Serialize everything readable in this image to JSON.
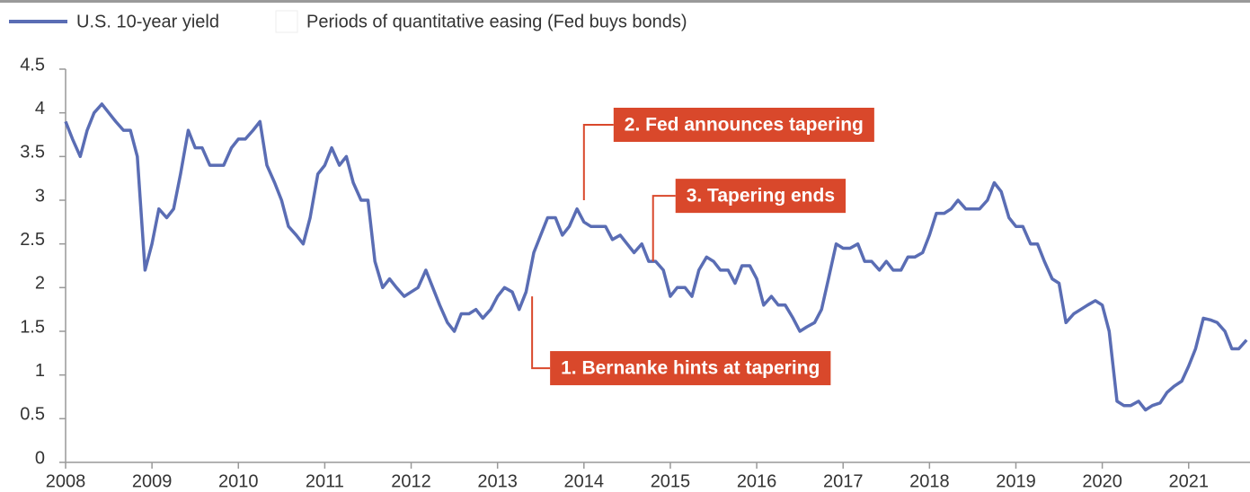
{
  "chart_data": {
    "type": "line",
    "series": [
      {
        "name": "U.S. 10-year yield",
        "color": "#5a6db4",
        "x": [
          2008.0,
          2008.08,
          2008.17,
          2008.25,
          2008.33,
          2008.42,
          2008.5,
          2008.58,
          2008.67,
          2008.75,
          2008.83,
          2008.92,
          2009.0,
          2009.08,
          2009.17,
          2009.25,
          2009.33,
          2009.42,
          2009.5,
          2009.58,
          2009.67,
          2009.75,
          2009.83,
          2009.92,
          2010.0,
          2010.08,
          2010.17,
          2010.25,
          2010.33,
          2010.42,
          2010.5,
          2010.58,
          2010.67,
          2010.75,
          2010.83,
          2010.92,
          2011.0,
          2011.08,
          2011.17,
          2011.25,
          2011.33,
          2011.42,
          2011.5,
          2011.58,
          2011.67,
          2011.75,
          2011.83,
          2011.92,
          2012.0,
          2012.08,
          2012.17,
          2012.25,
          2012.33,
          2012.42,
          2012.5,
          2012.58,
          2012.67,
          2012.75,
          2012.83,
          2012.92,
          2013.0,
          2013.08,
          2013.17,
          2013.25,
          2013.33,
          2013.42,
          2013.5,
          2013.58,
          2013.67,
          2013.75,
          2013.83,
          2013.92,
          2014.0,
          2014.08,
          2014.17,
          2014.25,
          2014.33,
          2014.42,
          2014.5,
          2014.58,
          2014.67,
          2014.75,
          2014.83,
          2014.92,
          2015.0,
          2015.08,
          2015.17,
          2015.25,
          2015.33,
          2015.42,
          2015.5,
          2015.58,
          2015.67,
          2015.75,
          2015.83,
          2015.92,
          2016.0,
          2016.08,
          2016.17,
          2016.25,
          2016.33,
          2016.42,
          2016.5,
          2016.58,
          2016.67,
          2016.75,
          2016.83,
          2016.92,
          2017.0,
          2017.08,
          2017.17,
          2017.25,
          2017.33,
          2017.42,
          2017.5,
          2017.58,
          2017.67,
          2017.75,
          2017.83,
          2017.92,
          2018.0,
          2018.08,
          2018.17,
          2018.25,
          2018.33,
          2018.42,
          2018.5,
          2018.58,
          2018.67,
          2018.75,
          2018.83,
          2018.92,
          2019.0,
          2019.08,
          2019.17,
          2019.25,
          2019.33,
          2019.42,
          2019.5,
          2019.58,
          2019.67,
          2019.75,
          2019.83,
          2019.92,
          2020.0,
          2020.08,
          2020.17,
          2020.25,
          2020.33,
          2020.42,
          2020.5,
          2020.58,
          2020.67,
          2020.75,
          2020.83,
          2020.92,
          2021.0,
          2021.08,
          2021.17,
          2021.25,
          2021.33,
          2021.42,
          2021.5,
          2021.58,
          2021.67
        ],
        "values": [
          3.9,
          3.7,
          3.5,
          3.8,
          4.0,
          4.1,
          4.0,
          3.9,
          3.8,
          3.8,
          3.5,
          2.2,
          2.5,
          2.9,
          2.8,
          2.9,
          3.3,
          3.8,
          3.6,
          3.6,
          3.4,
          3.4,
          3.4,
          3.6,
          3.7,
          3.7,
          3.8,
          3.9,
          3.4,
          3.2,
          3.0,
          2.7,
          2.6,
          2.5,
          2.8,
          3.3,
          3.4,
          3.6,
          3.4,
          3.5,
          3.2,
          3.0,
          3.0,
          2.3,
          2.0,
          2.1,
          2.0,
          1.9,
          1.95,
          2.0,
          2.2,
          2.0,
          1.8,
          1.6,
          1.5,
          1.7,
          1.7,
          1.75,
          1.65,
          1.75,
          1.9,
          2.0,
          1.95,
          1.75,
          1.95,
          2.4,
          2.6,
          2.8,
          2.8,
          2.6,
          2.7,
          2.9,
          2.75,
          2.7,
          2.7,
          2.7,
          2.55,
          2.6,
          2.5,
          2.4,
          2.5,
          2.3,
          2.3,
          2.2,
          1.9,
          2.0,
          2.0,
          1.9,
          2.2,
          2.35,
          2.3,
          2.2,
          2.2,
          2.05,
          2.25,
          2.25,
          2.1,
          1.8,
          1.9,
          1.8,
          1.8,
          1.65,
          1.5,
          1.55,
          1.6,
          1.75,
          2.1,
          2.5,
          2.45,
          2.45,
          2.5,
          2.3,
          2.3,
          2.2,
          2.3,
          2.2,
          2.2,
          2.35,
          2.35,
          2.4,
          2.6,
          2.85,
          2.85,
          2.9,
          3.0,
          2.9,
          2.9,
          2.9,
          3.0,
          3.2,
          3.1,
          2.8,
          2.7,
          2.7,
          2.5,
          2.5,
          2.3,
          2.1,
          2.05,
          1.6,
          1.7,
          1.75,
          1.8,
          1.85,
          1.8,
          1.5,
          0.7,
          0.65,
          0.65,
          0.7,
          0.6,
          0.65,
          0.68,
          0.8,
          0.87,
          0.93,
          1.1,
          1.3,
          1.65,
          1.63,
          1.6,
          1.5,
          1.3,
          1.3,
          1.4
        ]
      }
    ],
    "legend_extra": {
      "name": "Periods of quantitative easing (Fed buys bonds)",
      "color": "#ffffff"
    },
    "xlim": [
      2008,
      2021.71
    ],
    "xticks": [
      2008,
      2009,
      2010,
      2011,
      2012,
      2013,
      2014,
      2015,
      2016,
      2017,
      2018,
      2019,
      2020,
      2021
    ],
    "ylim": [
      0,
      4.5
    ],
    "yticks": [
      0,
      0.5,
      1,
      1.5,
      2,
      2.5,
      3,
      3.5,
      4,
      4.5
    ],
    "annotations": [
      {
        "text": "1. Bernanke hints at tapering",
        "x": 2013.4,
        "y": 1.9,
        "color": "#d9482b"
      },
      {
        "text": "2. Fed announces tapering",
        "x": 2014.0,
        "y": 3.0,
        "color": "#d9482b"
      },
      {
        "text": "3. Tapering ends",
        "x": 2014.8,
        "y": 2.3,
        "color": "#d9482b"
      }
    ]
  }
}
